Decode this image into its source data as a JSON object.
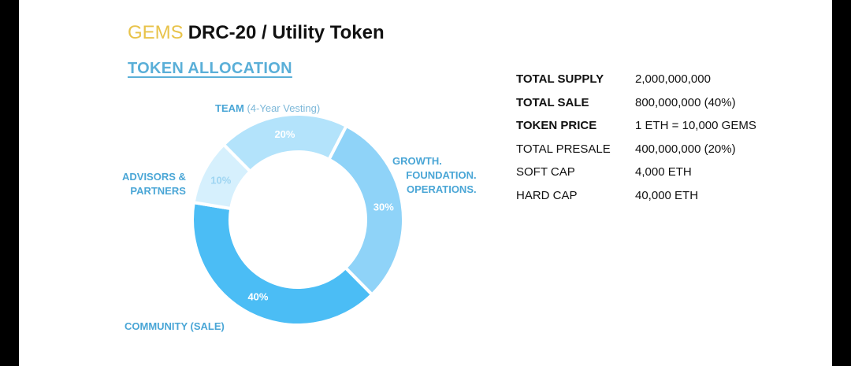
{
  "header": {
    "brand": "GEMS",
    "title": "DRC-20 / Utility Token",
    "section": "TOKEN ALLOCATION"
  },
  "colors": {
    "brand": "#e8c34a",
    "accent": "#5aafd8",
    "team": "#b3e3fb",
    "growth": "#8fd3f8",
    "community": "#4bbdf5",
    "advisors": "#d6f0fd"
  },
  "chart_data": {
    "type": "pie",
    "variant": "donut",
    "categories": [
      "TEAM (4-Year Vesting)",
      "GROWTH. FOUNDATION. OPERATIONS.",
      "COMMUNITY (SALE)",
      "ADVISORS & PARTNERS"
    ],
    "values": [
      20,
      30,
      40,
      10
    ],
    "value_labels": [
      "20%",
      "30%",
      "40%",
      "10%"
    ],
    "labels": {
      "team": {
        "name": "TEAM",
        "note": "(4-Year Vesting)"
      },
      "growth": [
        "GROWTH.",
        "FOUNDATION.",
        "OPERATIONS."
      ],
      "community": "COMMUNITY (SALE)",
      "advisors": [
        "ADVISORS &",
        "PARTNERS"
      ]
    }
  },
  "specs": [
    {
      "key": "TOTAL SUPPLY",
      "value": "2,000,000,000",
      "bold": true
    },
    {
      "key": "TOTAL SALE",
      "value": "800,000,000 (40%)",
      "bold": true
    },
    {
      "key": "TOKEN PRICE",
      "value": "1 ETH = 10,000 GEMS",
      "bold": true
    },
    {
      "key": "TOTAL PRESALE",
      "value": "400,000,000 (20%)",
      "bold": false
    },
    {
      "key": "SOFT CAP",
      "value": "4,000 ETH",
      "bold": false
    },
    {
      "key": "HARD CAP",
      "value": "40,000 ETH",
      "bold": false
    }
  ]
}
